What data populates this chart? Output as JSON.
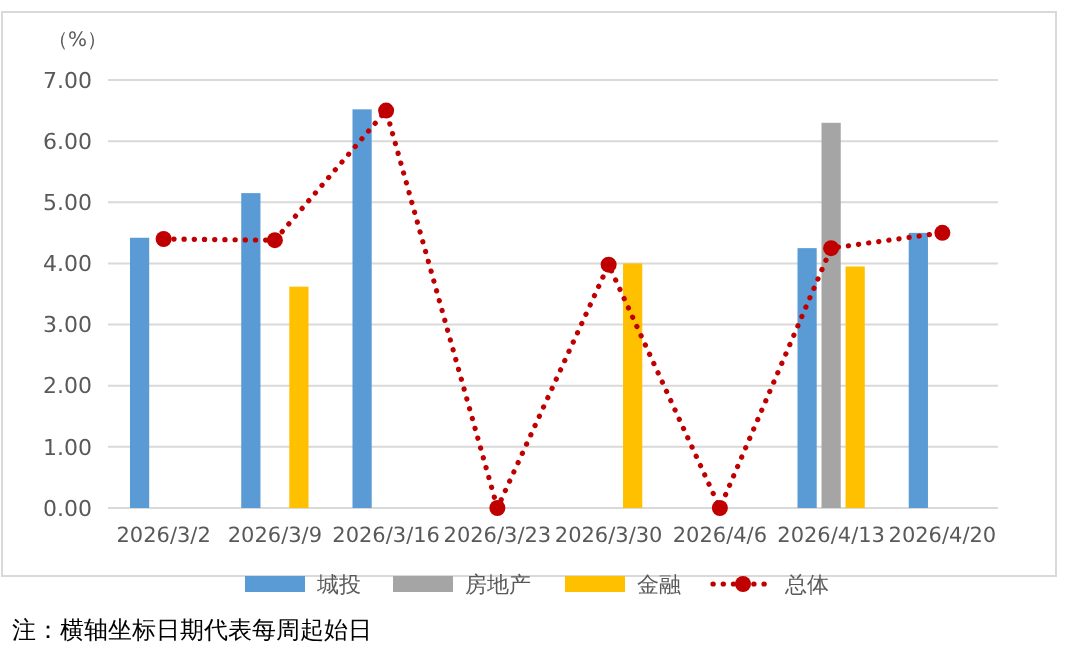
{
  "chart_data": {
    "type": "bar",
    "ylabel": "（%）",
    "categories": [
      "2026/3/2",
      "2026/3/9",
      "2026/3/16",
      "2026/3/23",
      "2026/3/30",
      "2026/4/6",
      "2026/4/13",
      "2026/4/20"
    ],
    "series": [
      {
        "name": "城投",
        "color": "#5b9bd5",
        "values": [
          4.42,
          5.15,
          6.52,
          null,
          null,
          null,
          4.25,
          4.5
        ]
      },
      {
        "name": "房地产",
        "color": "#a5a5a5",
        "values": [
          null,
          null,
          null,
          null,
          null,
          null,
          6.3,
          null
        ]
      },
      {
        "name": "金融",
        "color": "#ffc000",
        "values": [
          null,
          3.62,
          null,
          null,
          4.0,
          null,
          3.95,
          null
        ]
      },
      {
        "name": "总体",
        "type": "line",
        "color": "#c00000",
        "line_style": "dotted",
        "marker": "circle",
        "values": [
          4.4,
          4.38,
          6.5,
          0,
          3.98,
          0,
          4.25,
          4.5
        ]
      }
    ],
    "ylim": [
      0,
      7
    ],
    "yticks": [
      {
        "value": 0,
        "label": "0.00"
      },
      {
        "value": 1,
        "label": "1.00"
      },
      {
        "value": 2,
        "label": "2.00"
      },
      {
        "value": 3,
        "label": "3.00"
      },
      {
        "value": 4,
        "label": "4.00"
      },
      {
        "value": 5,
        "label": "5.00"
      },
      {
        "value": 6,
        "label": "6.00"
      },
      {
        "value": 7,
        "label": "7.00"
      }
    ],
    "grid": "y",
    "legend": "bottom",
    "annotations": [
      "注：横轴坐标日期代表每周起始日"
    ]
  }
}
